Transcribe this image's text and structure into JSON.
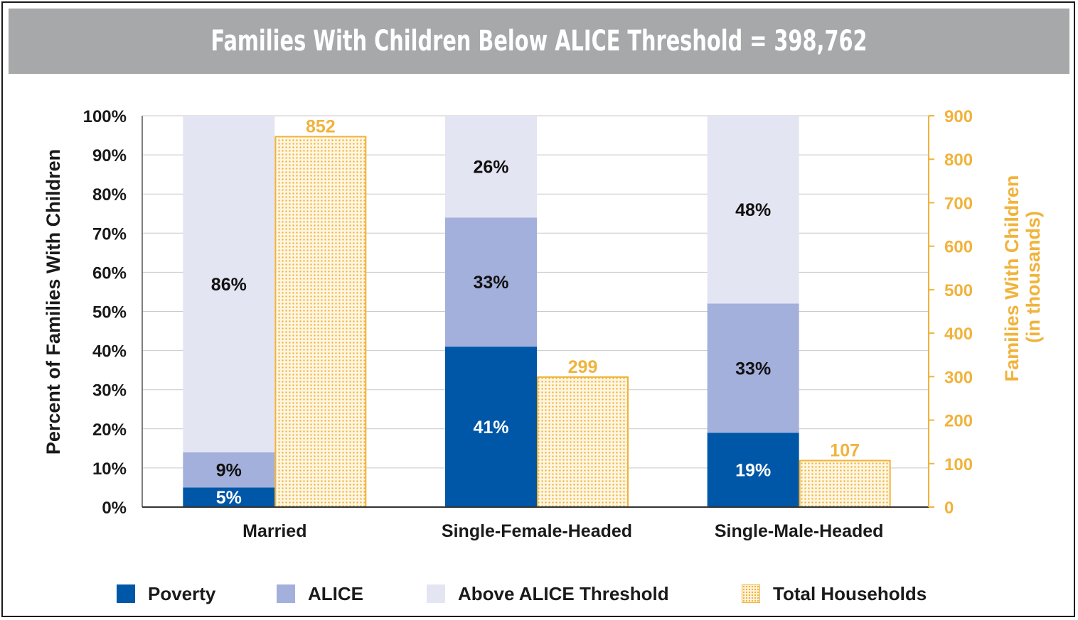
{
  "header": {
    "title": "Families With Children Below ALICE Threshold  = 398,762"
  },
  "chart_data": {
    "type": "bar",
    "title": "Families With Children Below ALICE Threshold  = 398,762",
    "categories": [
      "Married",
      "Single-Female-Headed",
      "Single-Male-Headed"
    ],
    "ylabel": "Percent of Families With Children",
    "y2label_line1": "Families With Children",
    "y2label_line2": "(in thousands)",
    "ylim": [
      0,
      100
    ],
    "y2lim": [
      0,
      900
    ],
    "yticks": [
      "0%",
      "10%",
      "20%",
      "30%",
      "40%",
      "50%",
      "60%",
      "70%",
      "80%",
      "90%",
      "100%"
    ],
    "y2ticks": [
      "0",
      "100",
      "200",
      "300",
      "400",
      "500",
      "600",
      "700",
      "800",
      "900"
    ],
    "grid": true,
    "legend_position": "bottom",
    "series": [
      {
        "name": "Poverty",
        "stack": "percent",
        "axis": "left",
        "color": "#0057a8",
        "values": [
          5,
          41,
          19
        ],
        "labels": [
          "5%",
          "41%",
          "19%"
        ]
      },
      {
        "name": "ALICE",
        "stack": "percent",
        "axis": "left",
        "color": "#a3b0db",
        "values": [
          9,
          33,
          33
        ],
        "labels": [
          "9%",
          "33%",
          "33%"
        ]
      },
      {
        "name": "Above ALICE Threshold",
        "stack": "percent",
        "axis": "left",
        "color": "#e3e5f3",
        "values": [
          86,
          26,
          48
        ],
        "labels": [
          "86%",
          "26%",
          "48%"
        ]
      },
      {
        "name": "Total Households",
        "axis": "right",
        "color": "#f0b33c",
        "pattern": "dots",
        "values": [
          852,
          299,
          107
        ],
        "labels": [
          "852",
          "299",
          "107"
        ]
      }
    ]
  }
}
